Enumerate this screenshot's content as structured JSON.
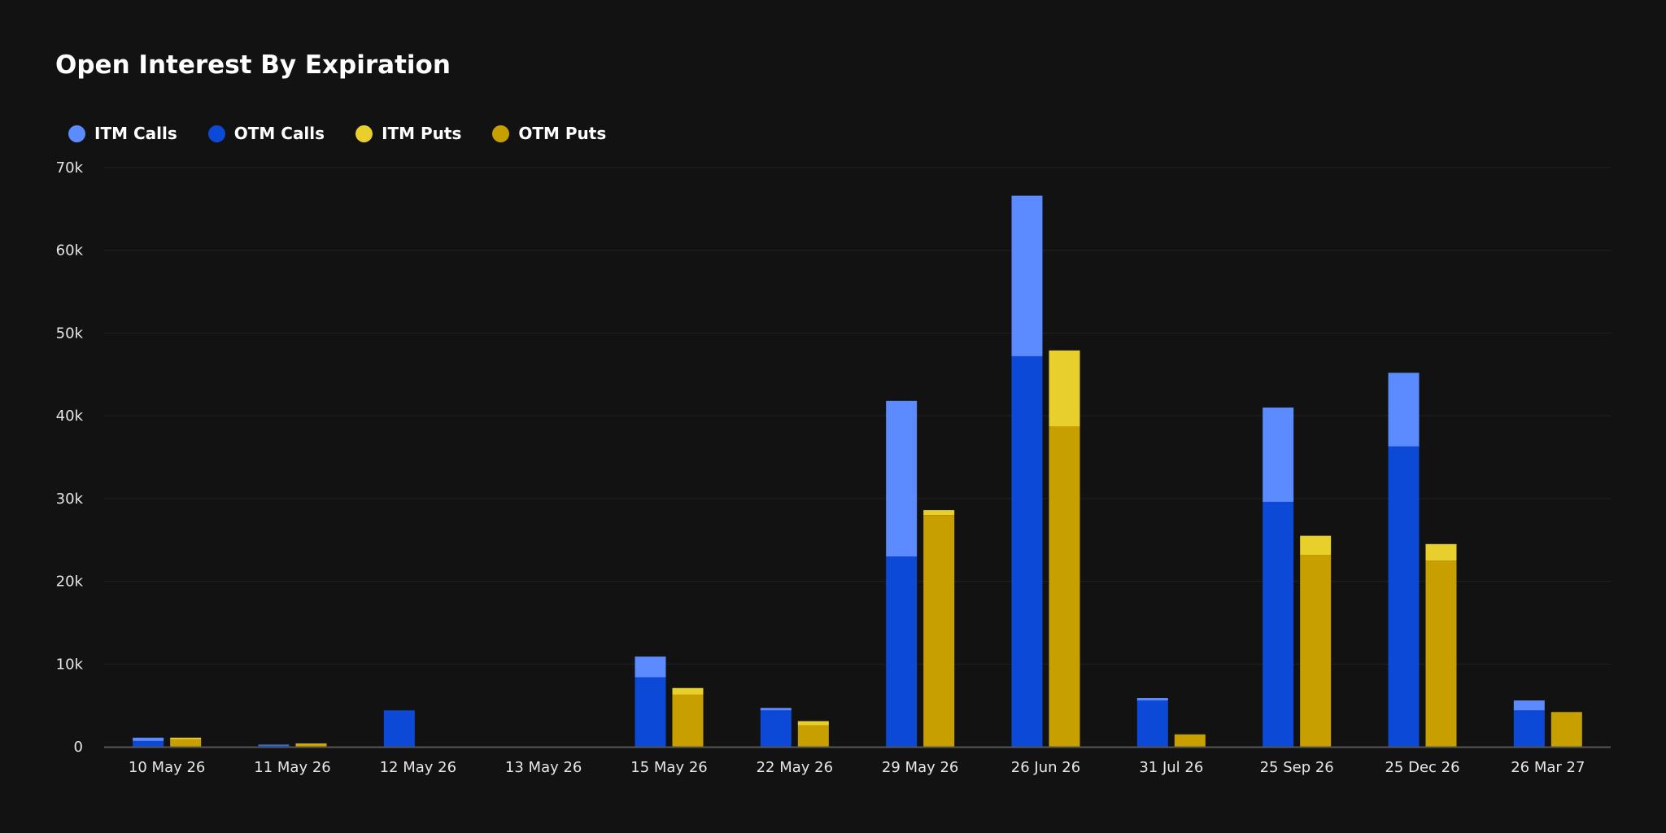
{
  "page": {
    "title": "Open Interest By Expiration"
  },
  "colors": {
    "background": "#121212",
    "grid": "#232323",
    "axis": "#555555",
    "itm_calls": "#5b8bff",
    "otm_calls": "#0b49d6",
    "itm_puts": "#e8cf2c",
    "otm_puts": "#c7a000"
  },
  "legend": [
    {
      "label": "ITM Calls",
      "color": "#5b8bff"
    },
    {
      "label": "OTM Calls",
      "color": "#0b49d6"
    },
    {
      "label": "ITM Puts",
      "color": "#e8cf2c"
    },
    {
      "label": "OTM Puts",
      "color": "#c7a000"
    }
  ],
  "chart_data": {
    "type": "bar",
    "stacked": true,
    "title": "Open Interest By Expiration",
    "categories": [
      "10 May 26",
      "11 May 26",
      "12 May 26",
      "13 May 26",
      "15 May 26",
      "22 May 26",
      "29 May 26",
      "26 Jun 26",
      "31 Jul 26",
      "25 Sep 26",
      "25 Dec 26",
      "26 Mar 27"
    ],
    "series": [
      {
        "name": "OTM Calls",
        "stack": "calls",
        "color": "#0b49d6",
        "values": [
          700,
          150,
          4400,
          0,
          8400,
          4400,
          23000,
          47200,
          5600,
          29600,
          36300,
          4400
        ]
      },
      {
        "name": "ITM Calls",
        "stack": "calls",
        "color": "#5b8bff",
        "values": [
          400,
          100,
          0,
          0,
          2500,
          300,
          18800,
          19400,
          300,
          11400,
          8900,
          1200
        ]
      },
      {
        "name": "OTM Puts",
        "stack": "puts",
        "color": "#c7a000",
        "values": [
          900,
          300,
          0,
          0,
          6300,
          2600,
          28000,
          38700,
          1500,
          23200,
          22500,
          4200
        ]
      },
      {
        "name": "ITM Puts",
        "stack": "puts",
        "color": "#e8cf2c",
        "values": [
          200,
          100,
          0,
          0,
          800,
          500,
          600,
          9200,
          0,
          2300,
          2000,
          0
        ]
      }
    ],
    "yticks": [
      "0",
      "10k",
      "20k",
      "30k",
      "40k",
      "50k",
      "60k",
      "70k"
    ],
    "ylim": [
      0,
      70000
    ],
    "grid": true,
    "legend_position": "top-left",
    "xlabel": "",
    "ylabel": ""
  }
}
